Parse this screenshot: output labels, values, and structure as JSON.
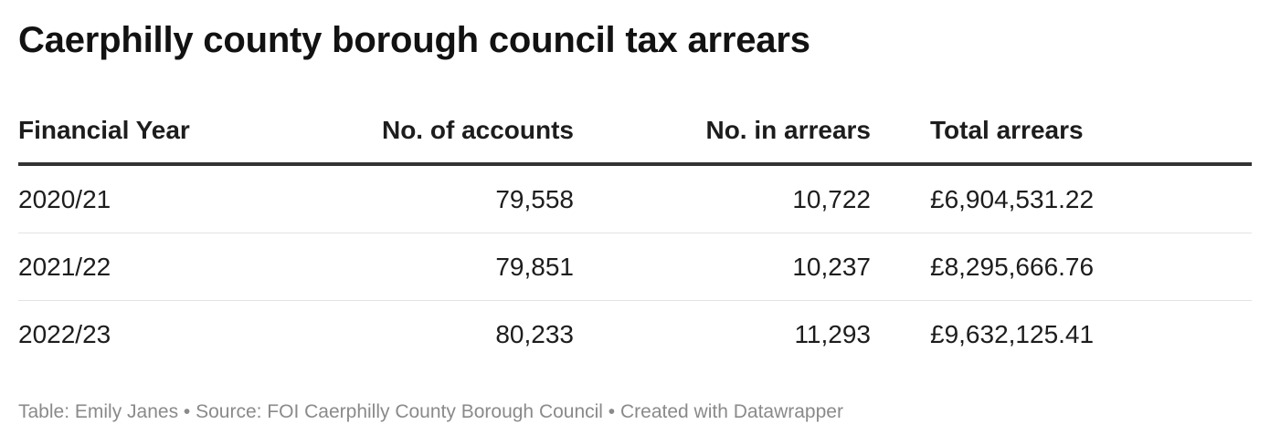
{
  "chart_data": {
    "type": "table",
    "title": "Caerphilly county borough council tax arrears",
    "columns": [
      "Financial Year",
      "No. of accounts",
      "No. in arrears",
      "Total arrears"
    ],
    "rows": [
      [
        "2020/21",
        "79,558",
        "10,722",
        "£6,904,531.22"
      ],
      [
        "2021/22",
        "79,851",
        "10,237",
        "£8,295,666.76"
      ],
      [
        "2022/23",
        "80,233",
        "11,293",
        "£9,632,125.41"
      ]
    ],
    "footer": "Table: Emily Janes • Source: FOI Caerphilly County Borough Council • Created with Datawrapper"
  }
}
